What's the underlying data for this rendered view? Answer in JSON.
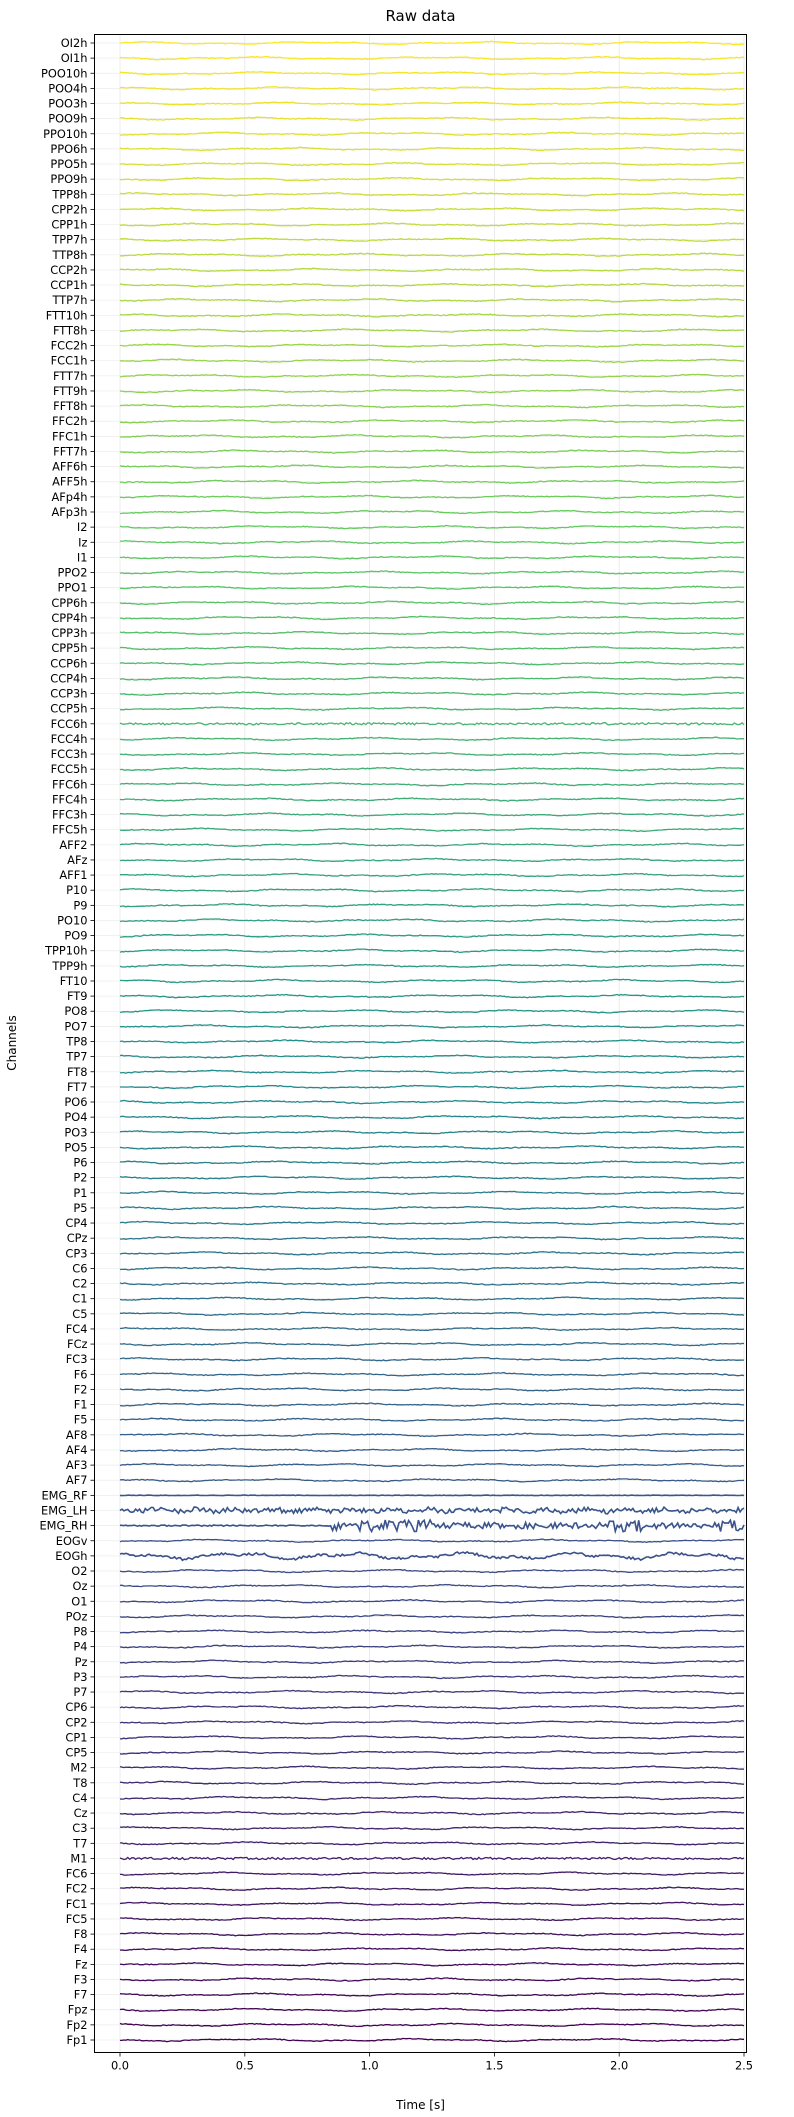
{
  "chart_data": {
    "type": "line",
    "title": "Raw data",
    "xlabel": "Time [s]",
    "ylabel": "Channels",
    "xlim": [
      0.0,
      2.5
    ],
    "xticks": [
      "0.0",
      "0.5",
      "1.0",
      "1.5",
      "2.0",
      "2.5"
    ],
    "grid": true,
    "colormap": "viridis",
    "channels": [
      "OI2h",
      "OI1h",
      "POO10h",
      "POO4h",
      "POO3h",
      "POO9h",
      "PPO10h",
      "PPO6h",
      "PPO5h",
      "PPO9h",
      "TPP8h",
      "CPP2h",
      "CPP1h",
      "TPP7h",
      "TTP8h",
      "CCP2h",
      "CCP1h",
      "TTP7h",
      "FTT10h",
      "FTT8h",
      "FCC2h",
      "FCC1h",
      "FTT7h",
      "FTT9h",
      "FFT8h",
      "FFC2h",
      "FFC1h",
      "FFT7h",
      "AFF6h",
      "AFF5h",
      "AFp4h",
      "AFp3h",
      "I2",
      "Iz",
      "I1",
      "PPO2",
      "PPO1",
      "CPP6h",
      "CPP4h",
      "CPP3h",
      "CPP5h",
      "CCP6h",
      "CCP4h",
      "CCP3h",
      "CCP5h",
      "FCC6h",
      "FCC4h",
      "FCC3h",
      "FCC5h",
      "FFC6h",
      "FFC4h",
      "FFC3h",
      "FFC5h",
      "AFF2",
      "AFz",
      "AFF1",
      "P10",
      "P9",
      "PO10",
      "PO9",
      "TPP10h",
      "TPP9h",
      "FT10",
      "FT9",
      "PO8",
      "PO7",
      "TP8",
      "TP7",
      "FT8",
      "FT7",
      "PO6",
      "PO4",
      "PO3",
      "PO5",
      "P6",
      "P2",
      "P1",
      "P5",
      "CP4",
      "CPz",
      "CP3",
      "C6",
      "C2",
      "C1",
      "C5",
      "FC4",
      "FCz",
      "FC3",
      "F6",
      "F2",
      "F1",
      "F5",
      "AF8",
      "AF4",
      "AF3",
      "AF7",
      "EMG_RF",
      "EMG_LH",
      "EMG_RH",
      "EOGv",
      "EOGh",
      "O2",
      "Oz",
      "O1",
      "POz",
      "P8",
      "P4",
      "Pz",
      "P3",
      "P7",
      "CP6",
      "CP2",
      "CP1",
      "CP5",
      "M2",
      "T8",
      "C4",
      "Cz",
      "C3",
      "T7",
      "M1",
      "FC6",
      "FC2",
      "FC1",
      "FC5",
      "F8",
      "F4",
      "Fz",
      "F3",
      "F7",
      "Fpz",
      "Fp2",
      "Fp1"
    ]
  }
}
